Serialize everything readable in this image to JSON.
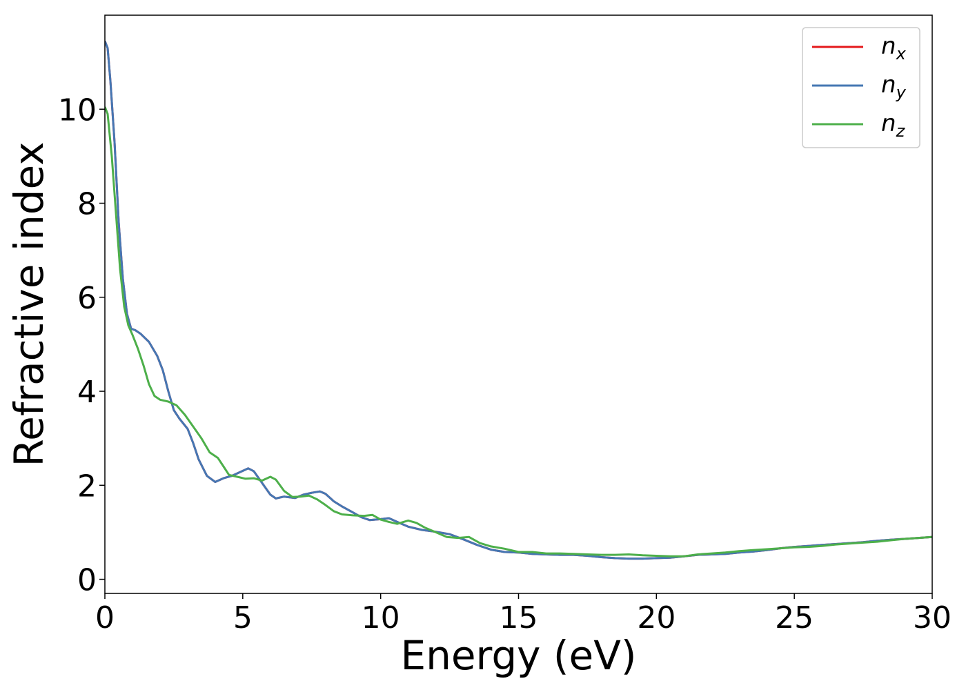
{
  "chart_data": {
    "type": "line",
    "title": "",
    "xlabel": "Energy (eV)",
    "ylabel": "Refractive index",
    "xlim": [
      0,
      30
    ],
    "ylim": [
      -0.3,
      12.0
    ],
    "xticks": [
      0,
      5,
      10,
      15,
      20,
      25,
      30
    ],
    "yticks": [
      0,
      2,
      4,
      6,
      8,
      10
    ],
    "xtick_labels": [
      "0",
      "5",
      "10",
      "15",
      "20",
      "25",
      "30"
    ],
    "ytick_labels": [
      "0",
      "2",
      "4",
      "6",
      "8",
      "10"
    ],
    "grid": false,
    "legend_position": "top-right",
    "series": [
      {
        "name": "n",
        "sub": "x",
        "color": "#e41a1c",
        "points": [
          [
            0,
            11.45
          ],
          [
            0.1,
            11.3
          ],
          [
            0.2,
            10.6
          ],
          [
            0.35,
            9.3
          ],
          [
            0.5,
            7.6
          ],
          [
            0.65,
            6.4
          ],
          [
            0.8,
            5.65
          ],
          [
            0.95,
            5.33
          ],
          [
            1.1,
            5.3
          ],
          [
            1.3,
            5.22
          ],
          [
            1.6,
            5.05
          ],
          [
            1.9,
            4.75
          ],
          [
            2.1,
            4.45
          ],
          [
            2.3,
            4.0
          ],
          [
            2.5,
            3.6
          ],
          [
            2.7,
            3.42
          ],
          [
            3.0,
            3.2
          ],
          [
            3.2,
            2.9
          ],
          [
            3.4,
            2.55
          ],
          [
            3.7,
            2.2
          ],
          [
            4.0,
            2.07
          ],
          [
            4.3,
            2.15
          ],
          [
            4.6,
            2.2
          ],
          [
            4.9,
            2.28
          ],
          [
            5.2,
            2.36
          ],
          [
            5.4,
            2.3
          ],
          [
            5.7,
            2.05
          ],
          [
            6.0,
            1.8
          ],
          [
            6.2,
            1.72
          ],
          [
            6.5,
            1.76
          ],
          [
            6.9,
            1.73
          ],
          [
            7.2,
            1.8
          ],
          [
            7.5,
            1.84
          ],
          [
            7.8,
            1.87
          ],
          [
            8.0,
            1.82
          ],
          [
            8.3,
            1.66
          ],
          [
            8.6,
            1.55
          ],
          [
            9.0,
            1.42
          ],
          [
            9.3,
            1.32
          ],
          [
            9.6,
            1.26
          ],
          [
            10.0,
            1.28
          ],
          [
            10.3,
            1.3
          ],
          [
            10.6,
            1.22
          ],
          [
            11.0,
            1.12
          ],
          [
            11.5,
            1.05
          ],
          [
            12.0,
            1.01
          ],
          [
            12.5,
            0.96
          ],
          [
            13.0,
            0.85
          ],
          [
            13.5,
            0.73
          ],
          [
            14.0,
            0.63
          ],
          [
            14.5,
            0.58
          ],
          [
            15.0,
            0.57
          ],
          [
            15.5,
            0.54
          ],
          [
            16.0,
            0.53
          ],
          [
            16.5,
            0.52
          ],
          [
            17.0,
            0.52
          ],
          [
            17.5,
            0.5
          ],
          [
            18.0,
            0.47
          ],
          [
            18.5,
            0.45
          ],
          [
            19.0,
            0.44
          ],
          [
            19.5,
            0.44
          ],
          [
            20.0,
            0.45
          ],
          [
            20.5,
            0.46
          ],
          [
            21.0,
            0.49
          ],
          [
            21.5,
            0.52
          ],
          [
            22.0,
            0.53
          ],
          [
            22.5,
            0.54
          ],
          [
            23.0,
            0.57
          ],
          [
            23.5,
            0.59
          ],
          [
            24.0,
            0.62
          ],
          [
            24.5,
            0.66
          ],
          [
            25.0,
            0.69
          ],
          [
            25.5,
            0.71
          ],
          [
            26.0,
            0.73
          ],
          [
            26.5,
            0.75
          ],
          [
            27.0,
            0.77
          ],
          [
            27.5,
            0.79
          ],
          [
            28.0,
            0.82
          ],
          [
            28.5,
            0.84
          ],
          [
            29.0,
            0.86
          ],
          [
            29.5,
            0.88
          ],
          [
            30.0,
            0.9
          ]
        ]
      },
      {
        "name": "n",
        "sub": "y",
        "color": "#4577b3",
        "points": [
          [
            0,
            11.45
          ],
          [
            0.1,
            11.3
          ],
          [
            0.2,
            10.6
          ],
          [
            0.35,
            9.3
          ],
          [
            0.5,
            7.6
          ],
          [
            0.65,
            6.4
          ],
          [
            0.8,
            5.65
          ],
          [
            0.95,
            5.33
          ],
          [
            1.1,
            5.3
          ],
          [
            1.3,
            5.22
          ],
          [
            1.6,
            5.05
          ],
          [
            1.9,
            4.75
          ],
          [
            2.1,
            4.45
          ],
          [
            2.3,
            4.0
          ],
          [
            2.5,
            3.6
          ],
          [
            2.7,
            3.42
          ],
          [
            3.0,
            3.2
          ],
          [
            3.2,
            2.9
          ],
          [
            3.4,
            2.55
          ],
          [
            3.7,
            2.2
          ],
          [
            4.0,
            2.07
          ],
          [
            4.3,
            2.15
          ],
          [
            4.6,
            2.2
          ],
          [
            4.9,
            2.28
          ],
          [
            5.2,
            2.36
          ],
          [
            5.4,
            2.3
          ],
          [
            5.7,
            2.05
          ],
          [
            6.0,
            1.8
          ],
          [
            6.2,
            1.72
          ],
          [
            6.5,
            1.76
          ],
          [
            6.9,
            1.73
          ],
          [
            7.2,
            1.8
          ],
          [
            7.5,
            1.84
          ],
          [
            7.8,
            1.87
          ],
          [
            8.0,
            1.82
          ],
          [
            8.3,
            1.66
          ],
          [
            8.6,
            1.55
          ],
          [
            9.0,
            1.42
          ],
          [
            9.3,
            1.32
          ],
          [
            9.6,
            1.26
          ],
          [
            10.0,
            1.28
          ],
          [
            10.3,
            1.3
          ],
          [
            10.6,
            1.22
          ],
          [
            11.0,
            1.12
          ],
          [
            11.5,
            1.05
          ],
          [
            12.0,
            1.01
          ],
          [
            12.5,
            0.96
          ],
          [
            13.0,
            0.85
          ],
          [
            13.5,
            0.73
          ],
          [
            14.0,
            0.63
          ],
          [
            14.5,
            0.58
          ],
          [
            15.0,
            0.57
          ],
          [
            15.5,
            0.54
          ],
          [
            16.0,
            0.53
          ],
          [
            16.5,
            0.52
          ],
          [
            17.0,
            0.52
          ],
          [
            17.5,
            0.5
          ],
          [
            18.0,
            0.47
          ],
          [
            18.5,
            0.45
          ],
          [
            19.0,
            0.44
          ],
          [
            19.5,
            0.44
          ],
          [
            20.0,
            0.45
          ],
          [
            20.5,
            0.46
          ],
          [
            21.0,
            0.49
          ],
          [
            21.5,
            0.52
          ],
          [
            22.0,
            0.53
          ],
          [
            22.5,
            0.54
          ],
          [
            23.0,
            0.57
          ],
          [
            23.5,
            0.59
          ],
          [
            24.0,
            0.62
          ],
          [
            24.5,
            0.66
          ],
          [
            25.0,
            0.69
          ],
          [
            25.5,
            0.71
          ],
          [
            26.0,
            0.73
          ],
          [
            26.5,
            0.75
          ],
          [
            27.0,
            0.77
          ],
          [
            27.5,
            0.79
          ],
          [
            28.0,
            0.82
          ],
          [
            28.5,
            0.84
          ],
          [
            29.0,
            0.86
          ],
          [
            29.5,
            0.88
          ],
          [
            30.0,
            0.9
          ]
        ]
      },
      {
        "name": "n",
        "sub": "z",
        "color": "#4daf4a",
        "points": [
          [
            0,
            10.05
          ],
          [
            0.1,
            9.9
          ],
          [
            0.25,
            9.0
          ],
          [
            0.4,
            7.8
          ],
          [
            0.55,
            6.6
          ],
          [
            0.7,
            5.8
          ],
          [
            0.85,
            5.4
          ],
          [
            1.0,
            5.2
          ],
          [
            1.2,
            4.9
          ],
          [
            1.4,
            4.55
          ],
          [
            1.6,
            4.15
          ],
          [
            1.8,
            3.9
          ],
          [
            2.0,
            3.82
          ],
          [
            2.3,
            3.78
          ],
          [
            2.6,
            3.7
          ],
          [
            2.9,
            3.5
          ],
          [
            3.2,
            3.25
          ],
          [
            3.5,
            3.0
          ],
          [
            3.8,
            2.7
          ],
          [
            4.1,
            2.58
          ],
          [
            4.3,
            2.4
          ],
          [
            4.5,
            2.22
          ],
          [
            4.8,
            2.18
          ],
          [
            5.1,
            2.14
          ],
          [
            5.4,
            2.15
          ],
          [
            5.7,
            2.1
          ],
          [
            6.0,
            2.18
          ],
          [
            6.2,
            2.12
          ],
          [
            6.5,
            1.88
          ],
          [
            6.8,
            1.75
          ],
          [
            7.1,
            1.76
          ],
          [
            7.4,
            1.78
          ],
          [
            7.7,
            1.7
          ],
          [
            8.0,
            1.58
          ],
          [
            8.3,
            1.45
          ],
          [
            8.6,
            1.38
          ],
          [
            9.0,
            1.36
          ],
          [
            9.4,
            1.35
          ],
          [
            9.7,
            1.37
          ],
          [
            10.0,
            1.27
          ],
          [
            10.3,
            1.22
          ],
          [
            10.6,
            1.18
          ],
          [
            11.0,
            1.25
          ],
          [
            11.3,
            1.2
          ],
          [
            11.6,
            1.1
          ],
          [
            12.0,
            1.0
          ],
          [
            12.4,
            0.9
          ],
          [
            12.8,
            0.88
          ],
          [
            13.2,
            0.9
          ],
          [
            13.6,
            0.77
          ],
          [
            14.0,
            0.7
          ],
          [
            14.5,
            0.65
          ],
          [
            15.0,
            0.58
          ],
          [
            15.5,
            0.58
          ],
          [
            16.0,
            0.55
          ],
          [
            16.5,
            0.55
          ],
          [
            17.0,
            0.54
          ],
          [
            17.5,
            0.53
          ],
          [
            18.0,
            0.52
          ],
          [
            18.5,
            0.52
          ],
          [
            19.0,
            0.53
          ],
          [
            19.5,
            0.51
          ],
          [
            20.0,
            0.5
          ],
          [
            20.5,
            0.49
          ],
          [
            21.0,
            0.49
          ],
          [
            21.5,
            0.53
          ],
          [
            22.0,
            0.55
          ],
          [
            22.5,
            0.57
          ],
          [
            23.0,
            0.6
          ],
          [
            23.5,
            0.62
          ],
          [
            24.0,
            0.64
          ],
          [
            24.5,
            0.66
          ],
          [
            25.0,
            0.68
          ],
          [
            25.5,
            0.69
          ],
          [
            26.0,
            0.71
          ],
          [
            26.5,
            0.74
          ],
          [
            27.0,
            0.76
          ],
          [
            27.5,
            0.78
          ],
          [
            28.0,
            0.8
          ],
          [
            28.5,
            0.83
          ],
          [
            29.0,
            0.86
          ],
          [
            29.5,
            0.88
          ],
          [
            30.0,
            0.9
          ]
        ]
      }
    ]
  }
}
